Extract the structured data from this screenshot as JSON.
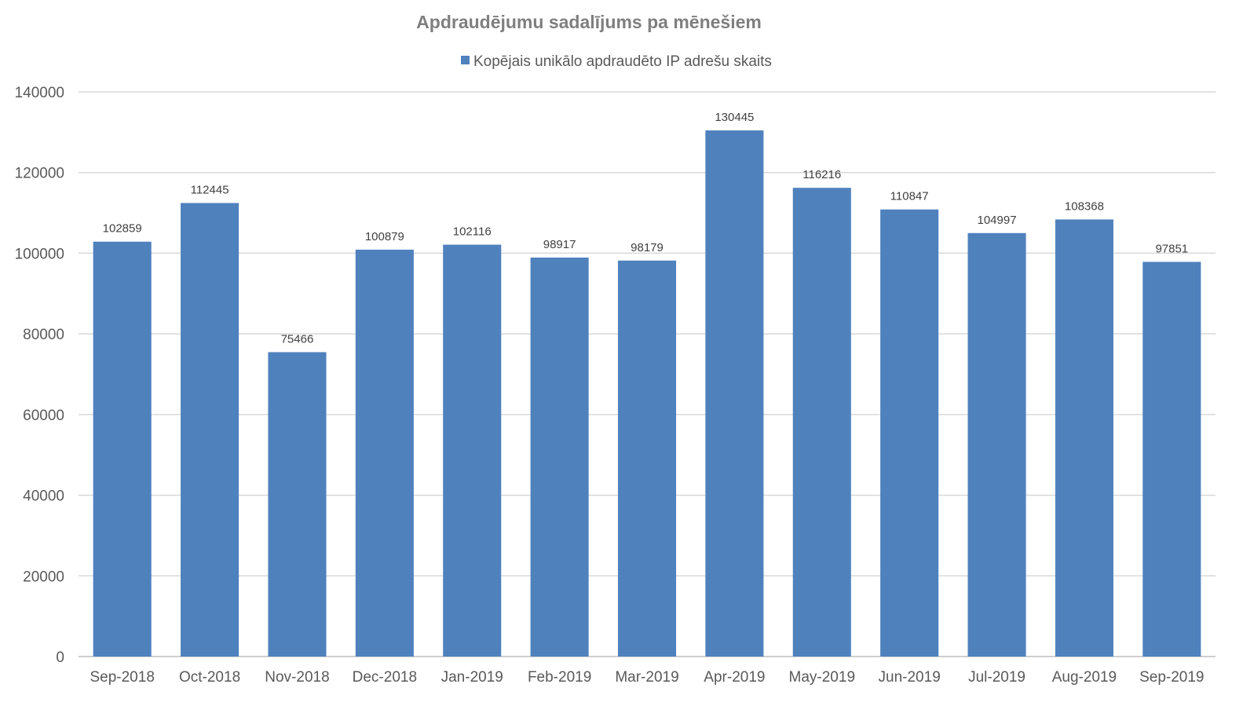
{
  "chart_data": {
    "type": "bar",
    "title": "Apdraudējumu sadalījums pa mēnešiem",
    "categories": [
      "Sep-2018",
      "Oct-2018",
      "Nov-2018",
      "Dec-2018",
      "Jan-2019",
      "Feb-2019",
      "Mar-2019",
      "Apr-2019",
      "May-2019",
      "Jun-2019",
      "Jul-2019",
      "Aug-2019",
      "Sep-2019"
    ],
    "series": [
      {
        "name": "Kopējais unikālo apdraudēto IP adrešu skaits",
        "color": "#4f81bd",
        "values": [
          102859,
          112445,
          75466,
          100879,
          102116,
          98917,
          98179,
          130445,
          116216,
          110847,
          104997,
          108368,
          97851
        ]
      }
    ],
    "ylim": [
      0,
      140000
    ],
    "yticks": [
      0,
      20000,
      40000,
      60000,
      80000,
      100000,
      120000,
      140000
    ],
    "xlabel": "",
    "ylabel": "",
    "grid": true,
    "legend_position": "top"
  }
}
